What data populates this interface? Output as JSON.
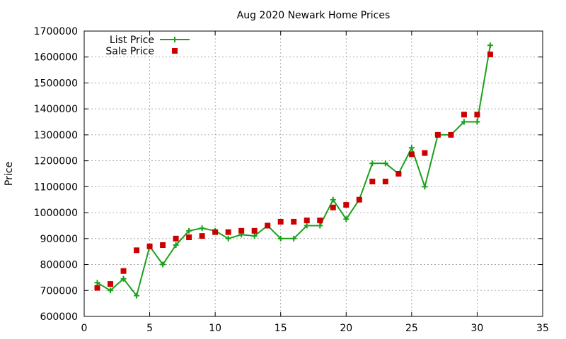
{
  "chart_data": {
    "type": "line",
    "title": "Aug 2020 Newark Home Prices",
    "xlabel": "",
    "ylabel": "Price",
    "xlim": [
      0,
      35
    ],
    "ylim": [
      600000,
      1700000
    ],
    "x_ticks": [
      0,
      5,
      10,
      15,
      20,
      25,
      30,
      35
    ],
    "y_ticks": [
      600000,
      700000,
      800000,
      900000,
      1000000,
      1100000,
      1200000,
      1300000,
      1400000,
      1500000,
      1600000,
      1700000
    ],
    "grid": true,
    "legend_position": "top-left",
    "series": [
      {
        "name": "List Price",
        "style": "line-with-plus-markers",
        "color": "#1aa01a",
        "x": [
          1,
          2,
          3,
          4,
          5,
          6,
          7,
          8,
          9,
          10,
          11,
          12,
          13,
          14,
          15,
          16,
          17,
          18,
          19,
          20,
          21,
          22,
          23,
          24,
          25,
          26,
          27,
          28,
          29,
          30,
          31
        ],
        "values": [
          730000,
          700000,
          745000,
          680000,
          870000,
          800000,
          875000,
          930000,
          940000,
          930000,
          900000,
          915000,
          910000,
          950000,
          900000,
          900000,
          950000,
          950000,
          1050000,
          975000,
          1050000,
          1190000,
          1190000,
          1150000,
          1250000,
          1100000,
          1300000,
          1300000,
          1350000,
          1350000,
          1645000
        ]
      },
      {
        "name": "Sale Price",
        "style": "square-markers",
        "color": "#cc0000",
        "x": [
          1,
          2,
          3,
          4,
          5,
          6,
          7,
          8,
          9,
          10,
          11,
          12,
          13,
          14,
          15,
          16,
          17,
          18,
          19,
          20,
          21,
          22,
          23,
          24,
          25,
          26,
          27,
          28,
          29,
          30,
          31
        ],
        "values": [
          710000,
          725000,
          775000,
          855000,
          870000,
          875000,
          900000,
          905000,
          910000,
          925000,
          925000,
          930000,
          930000,
          950000,
          965000,
          965000,
          970000,
          970000,
          1020000,
          1030000,
          1050000,
          1120000,
          1120000,
          1150000,
          1225000,
          1230000,
          1300000,
          1300000,
          1378000,
          1378000,
          1610000
        ]
      }
    ]
  }
}
